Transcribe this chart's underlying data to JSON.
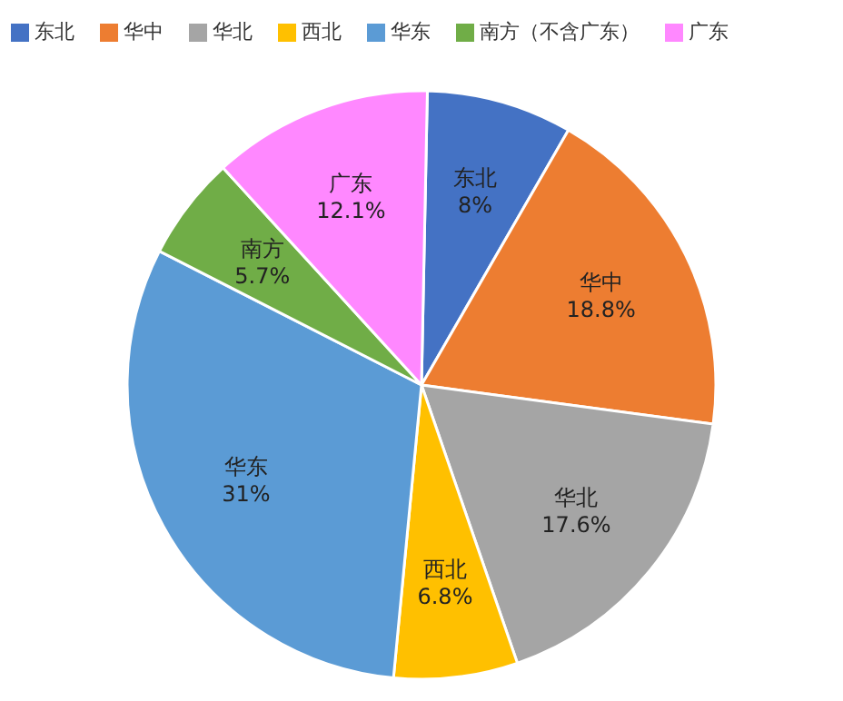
{
  "chart_data": {
    "type": "pie",
    "categories": [
      "东北",
      "华中",
      "华北",
      "西北",
      "华东",
      "南方（不含广东）",
      "广东"
    ],
    "values": [
      8,
      18.8,
      17.6,
      6.8,
      31,
      5.7,
      12.1
    ],
    "colors": [
      "#4472c4",
      "#ed7d31",
      "#a5a5a5",
      "#ffc000",
      "#5b9bd5",
      "#70ad47",
      "#ff88ff"
    ],
    "value_labels": [
      "东北 8%",
      "华中 18.8%",
      "华北 17.6%",
      "西北 6.8%",
      "华东 31%",
      "南方 5.7%",
      "广东 12.1%"
    ],
    "legend": "top"
  }
}
